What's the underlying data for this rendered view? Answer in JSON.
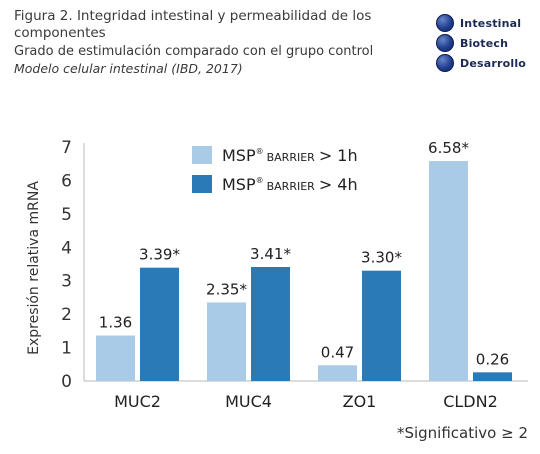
{
  "header": {
    "title": "Figura 2. Integridad intestinal y permeabilidad de los componentes",
    "subtitle": "Grado de estimulación comparado con el grupo control",
    "source": "Modelo celular intestinal (IBD, 2017)"
  },
  "logo": {
    "lines": [
      "Intestinal",
      "Biotech",
      "Desarrollo"
    ],
    "color": "#1f3f8f"
  },
  "footnote": "*Significativo ≥ 2",
  "chart_data": {
    "type": "bar",
    "title": "",
    "xlabel": "",
    "ylabel": "Expresión relativa mRNA",
    "ylim": [
      0,
      7
    ],
    "yticks": [
      "0",
      "1",
      "2",
      "3",
      "4",
      "5",
      "6",
      "7"
    ],
    "grid": false,
    "legend_position": "top-center",
    "categories": [
      "MUC2",
      "MUC4",
      "ZO1",
      "CLDN2"
    ],
    "series": [
      {
        "name_main": "MSP",
        "name_sup": "®",
        "name_small": "BARRIER",
        "name_tail": "> 1h",
        "color": "#a9cbe7",
        "values": [
          1.36,
          2.35,
          0.47,
          6.58
        ],
        "labels": [
          "1.36",
          "2.35*",
          "0.47",
          "6.58*"
        ]
      },
      {
        "name_main": "MSP",
        "name_sup": "®",
        "name_small": "BARRIER",
        "name_tail": "> 4h",
        "color": "#2a7ab8",
        "values": [
          3.39,
          3.41,
          3.3,
          0.26
        ],
        "labels": [
          "3.39*",
          "3.41*",
          "3.30*",
          "0.26"
        ]
      }
    ]
  }
}
